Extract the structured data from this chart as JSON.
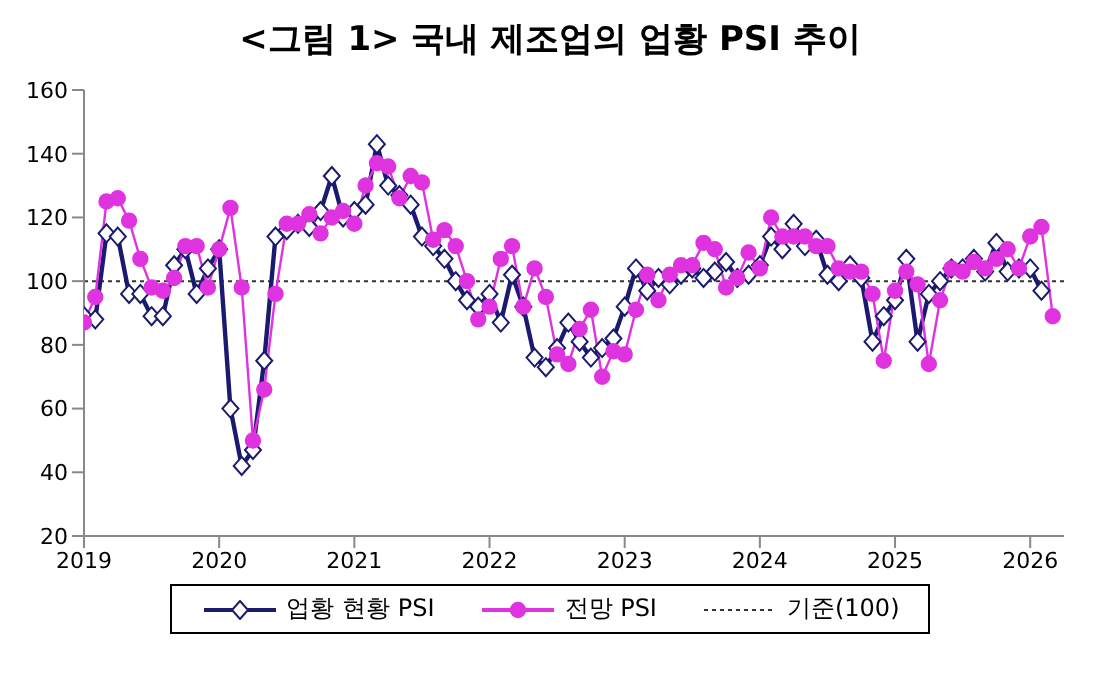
{
  "chart_data": {
    "type": "line",
    "title": "<그림 1> 국내 제조업의 업황 PSI 추이",
    "x": [
      "2019-01",
      "2019-02",
      "2019-03",
      "2019-04",
      "2019-05",
      "2019-06",
      "2019-07",
      "2019-08",
      "2019-09",
      "2019-10",
      "2019-11",
      "2019-12",
      "2020-01",
      "2020-02",
      "2020-03",
      "2020-04",
      "2020-05",
      "2020-06",
      "2020-07",
      "2020-08",
      "2020-09",
      "2020-10",
      "2020-11",
      "2020-12",
      "2021-01",
      "2021-02",
      "2021-03",
      "2021-04",
      "2021-05",
      "2021-06",
      "2021-07",
      "2021-08",
      "2021-09",
      "2021-10",
      "2021-11",
      "2021-12",
      "2022-01",
      "2022-02",
      "2022-03",
      "2022-04",
      "2022-05",
      "2022-06",
      "2022-07",
      "2022-08",
      "2022-09",
      "2022-10",
      "2022-11",
      "2022-12",
      "2023-01",
      "2023-02",
      "2023-03",
      "2023-04",
      "2023-05",
      "2023-06",
      "2023-07",
      "2023-08",
      "2023-09",
      "2023-10",
      "2023-11",
      "2023-12",
      "2024-01",
      "2024-02",
      "2024-03",
      "2024-04",
      "2024-05",
      "2024-06",
      "2024-07",
      "2024-08",
      "2024-09",
      "2024-10",
      "2024-11",
      "2024-12",
      "2025-01",
      "2025-02",
      "2025-03",
      "2025-04",
      "2025-05",
      "2025-06",
      "2025-07",
      "2025-08",
      "2025-09",
      "2025-10",
      "2025-11",
      "2025-12",
      "2026-01",
      "2026-02",
      "2026-03"
    ],
    "series": [
      {
        "name": "업황 현황 PSI",
        "color": "#1a1a6e",
        "marker": "diamond",
        "values": [
          89,
          88,
          115,
          114,
          96,
          96,
          89,
          89,
          105,
          110,
          96,
          104,
          110,
          60,
          42,
          47,
          75,
          114,
          116,
          118,
          117,
          122,
          133,
          120,
          122,
          124,
          143,
          130,
          127,
          124,
          114,
          111,
          107,
          100,
          94,
          92,
          96,
          87,
          102,
          92,
          76,
          73,
          79,
          87,
          81,
          76,
          79,
          82,
          92,
          104,
          97,
          101,
          99,
          102,
          104,
          101,
          103,
          106,
          101,
          102,
          105,
          114,
          110,
          118,
          111,
          113,
          102,
          100,
          105,
          101,
          81,
          89,
          94,
          107,
          81,
          96,
          100,
          104,
          104,
          107,
          103,
          112,
          103,
          104,
          104,
          97,
          null
        ]
      },
      {
        "name": "전망 PSI",
        "color": "#e033e0",
        "marker": "circle",
        "values": [
          87,
          95,
          125,
          126,
          119,
          107,
          98,
          97,
          101,
          111,
          111,
          98,
          110,
          123,
          98,
          50,
          66,
          96,
          118,
          118,
          121,
          115,
          120,
          122,
          118,
          130,
          137,
          136,
          126,
          133,
          131,
          113,
          116,
          111,
          100,
          88,
          92,
          107,
          111,
          92,
          104,
          95,
          77,
          74,
          85,
          91,
          70,
          78,
          77,
          91,
          102,
          94,
          102,
          105,
          105,
          112,
          110,
          98,
          101,
          109,
          104,
          120,
          114,
          114,
          114,
          111,
          111,
          104,
          103,
          103,
          96,
          75,
          97,
          103,
          99,
          74,
          94,
          104,
          103,
          106,
          104,
          107,
          110,
          104,
          114,
          117,
          89
        ]
      }
    ],
    "xlim": [
      "2019-01",
      "2026-04"
    ],
    "xticks": [
      {
        "value": "2019-01",
        "label": "2019"
      },
      {
        "value": "2020-01",
        "label": "2020"
      },
      {
        "value": "2021-01",
        "label": "2021"
      },
      {
        "value": "2022-01",
        "label": "2022"
      },
      {
        "value": "2023-01",
        "label": "2023"
      },
      {
        "value": "2024-01",
        "label": "2024"
      },
      {
        "value": "2025-01",
        "label": "2025"
      },
      {
        "value": "2026-01",
        "label": "2026"
      }
    ],
    "ylim": [
      20,
      160
    ],
    "yticks": [
      20,
      40,
      60,
      80,
      100,
      120,
      140,
      160
    ],
    "ref_lines": [
      {
        "axis": "y",
        "value": 100,
        "label": "기준(100)",
        "color": "#333333",
        "line_style": "dotted"
      }
    ],
    "legend": "bottom"
  }
}
